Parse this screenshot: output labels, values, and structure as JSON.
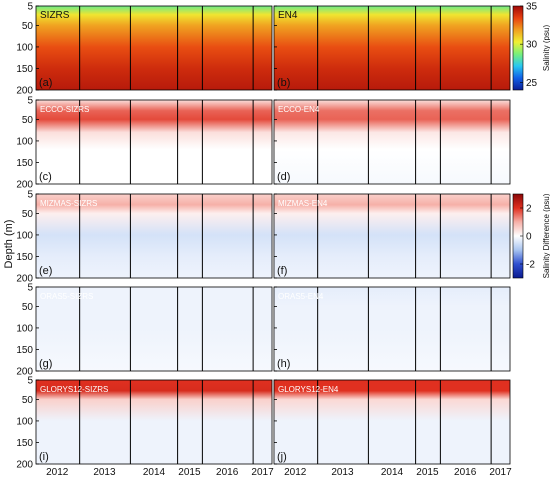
{
  "figure": {
    "ylabel": "Depth (m)",
    "cb_top_label": "Salinity (psu)",
    "cb_bottom_label": "Salinity Difference (psu)"
  },
  "colorbars": {
    "salinity": {
      "ticks": [
        "35",
        "30",
        "25"
      ],
      "range": [
        24,
        35
      ],
      "colormap": [
        "#0a1e96",
        "#1060e8",
        "#28c8f0",
        "#78f07a",
        "#f0f032",
        "#f0a020",
        "#e84010",
        "#a00808"
      ]
    },
    "difference": {
      "ticks": [
        "2",
        "0",
        "-2"
      ],
      "range": [
        -3,
        3
      ],
      "colormap": [
        "#0a1a90",
        "#3050d0",
        "#a8c4f0",
        "#ffffff",
        "#f6b0a8",
        "#e03020",
        "#8a0808"
      ]
    }
  },
  "axes": {
    "y_ticks": [
      "5",
      "50",
      "100",
      "150",
      "200"
    ],
    "x_ticks": [
      "2012",
      "2013",
      "2014",
      "2015",
      "2016",
      "2017"
    ]
  },
  "chart_data": {
    "type": "heatmap",
    "x_variable": "year",
    "y_variable": "depth (m)",
    "ylim": [
      5,
      200
    ],
    "y_reversed": true,
    "x_ticks": [
      2012,
      2013,
      2014,
      2015,
      2016,
      2017
    ],
    "panels": [
      {
        "tag": "(a)",
        "label": "SIZRS",
        "kind": "salinity",
        "profile_depth": [
          5,
          25,
          50,
          100,
          150,
          200
        ],
        "profile_value": [
          28.5,
          30.5,
          31.8,
          33.2,
          34.0,
          34.5
        ]
      },
      {
        "tag": "(b)",
        "label": "EN4",
        "kind": "salinity",
        "profile_depth": [
          5,
          25,
          50,
          100,
          150,
          200
        ],
        "profile_value": [
          28.5,
          30.5,
          31.8,
          33.2,
          34.0,
          34.5
        ]
      },
      {
        "tag": "(c)",
        "label": "ECCO-SIZRS",
        "kind": "difference",
        "profile_depth": [
          5,
          30,
          50,
          80,
          120,
          200
        ],
        "profile_value": [
          0.4,
          1.6,
          1.8,
          0.4,
          0.0,
          0.0
        ]
      },
      {
        "tag": "(d)",
        "label": "ECCO-EN4",
        "kind": "difference",
        "profile_depth": [
          5,
          30,
          50,
          80,
          120,
          200
        ],
        "profile_value": [
          0.4,
          1.5,
          1.6,
          0.3,
          0.0,
          -0.1
        ]
      },
      {
        "tag": "(e)",
        "label": "MIZMAS-SIZRS",
        "kind": "difference",
        "profile_depth": [
          5,
          30,
          50,
          100,
          150,
          200
        ],
        "profile_value": [
          0.6,
          1.0,
          0.2,
          -0.5,
          -0.3,
          -0.2
        ]
      },
      {
        "tag": "(f)",
        "label": "MIZMAS-EN4",
        "kind": "difference",
        "profile_depth": [
          5,
          30,
          50,
          100,
          150,
          200
        ],
        "profile_value": [
          0.6,
          1.0,
          0.2,
          -0.5,
          -0.3,
          -0.2
        ]
      },
      {
        "tag": "(g)",
        "label": "ORAS5-SIZRS",
        "kind": "difference",
        "profile_depth": [
          5,
          50,
          100,
          200
        ],
        "profile_value": [
          -0.2,
          -0.2,
          -0.2,
          -0.1
        ]
      },
      {
        "tag": "(h)",
        "label": "ORAS5-EN4",
        "kind": "difference",
        "profile_depth": [
          5,
          50,
          100,
          200
        ],
        "profile_value": [
          -0.3,
          -0.2,
          -0.2,
          -0.1
        ]
      },
      {
        "tag": "(i)",
        "label": "GLORYS12-SIZRS",
        "kind": "difference",
        "profile_depth": [
          5,
          30,
          50,
          100,
          200
        ],
        "profile_value": [
          2.0,
          2.1,
          0.6,
          -0.2,
          -0.2
        ]
      },
      {
        "tag": "(j)",
        "label": "GLORYS12-EN4",
        "kind": "difference",
        "profile_depth": [
          5,
          30,
          50,
          100,
          200
        ],
        "profile_value": [
          2.0,
          2.0,
          0.5,
          -0.2,
          -0.2
        ]
      }
    ]
  }
}
